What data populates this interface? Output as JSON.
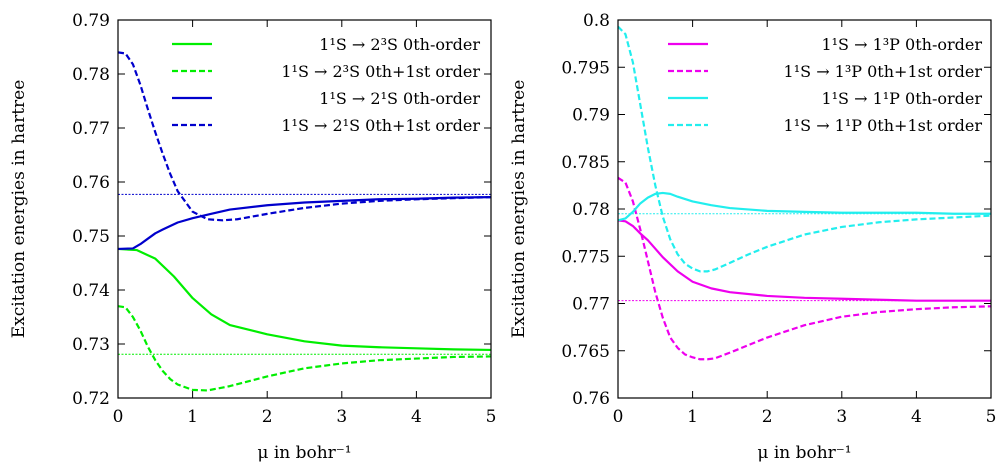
{
  "chart_data": [
    {
      "type": "line",
      "xlabel": "μ in bohr⁻¹",
      "ylabel": "Excitation energies in hartree",
      "xlim": [
        0,
        5
      ],
      "ylim": [
        0.72,
        0.79
      ],
      "xticks": [
        "0",
        "1",
        "2",
        "3",
        "4",
        "5"
      ],
      "yticks": [
        "0.72",
        "0.73",
        "0.74",
        "0.75",
        "0.76",
        "0.77",
        "0.78",
        "0.79"
      ],
      "legend_position": "top-right",
      "series": [
        {
          "name": "1¹S → 2³S 0th-order",
          "color": "#00ee00",
          "dash": "solid",
          "x": [
            0,
            0.25,
            0.5,
            0.75,
            1,
            1.25,
            1.5,
            2,
            2.5,
            3,
            3.5,
            4,
            4.5,
            5
          ],
          "y": [
            0.7476,
            0.7474,
            0.7458,
            0.7425,
            0.7385,
            0.7355,
            0.7335,
            0.7318,
            0.7305,
            0.7297,
            0.7294,
            0.7292,
            0.729,
            0.7289
          ]
        },
        {
          "name": "1¹S → 2³S 0th+1st order",
          "color": "#00ee00",
          "dash": "dashed",
          "x": [
            0,
            0.1,
            0.2,
            0.3,
            0.4,
            0.5,
            0.6,
            0.7,
            0.8,
            1,
            1.2,
            1.5,
            2,
            2.5,
            3,
            3.5,
            4,
            4.5,
            5
          ],
          "y": [
            0.737,
            0.7368,
            0.735,
            0.7325,
            0.7295,
            0.727,
            0.725,
            0.7235,
            0.7225,
            0.7215,
            0.7214,
            0.7222,
            0.724,
            0.7255,
            0.7264,
            0.727,
            0.7273,
            0.7276,
            0.7277
          ]
        },
        {
          "name": "1¹S → 2¹S 0th-order",
          "color": "#0000cc",
          "dash": "solid",
          "x": [
            0,
            0.2,
            0.3,
            0.4,
            0.5,
            0.6,
            0.8,
            1,
            1.25,
            1.5,
            2,
            2.5,
            3,
            3.5,
            4,
            4.5,
            5
          ],
          "y": [
            0.7476,
            0.7477,
            0.7485,
            0.7495,
            0.7505,
            0.7512,
            0.7525,
            0.7533,
            0.7541,
            0.7549,
            0.7557,
            0.7562,
            0.7565,
            0.7568,
            0.7569,
            0.7571,
            0.7572
          ]
        },
        {
          "name": "1¹S → 2¹S 0th+1st order",
          "color": "#0000cc",
          "dash": "dashed",
          "x": [
            0,
            0.1,
            0.2,
            0.3,
            0.4,
            0.5,
            0.6,
            0.7,
            0.8,
            1,
            1.2,
            1.4,
            1.6,
            2,
            2.5,
            3,
            3.5,
            4,
            4.5,
            5
          ],
          "y": [
            0.784,
            0.7838,
            0.7818,
            0.778,
            0.7735,
            0.7692,
            0.7652,
            0.7615,
            0.7583,
            0.7545,
            0.7531,
            0.7529,
            0.7531,
            0.7541,
            0.7552,
            0.756,
            0.7565,
            0.7568,
            0.757,
            0.7572
          ]
        }
      ],
      "reference_lines": [
        {
          "y": 0.7577,
          "color": "#0000cc"
        },
        {
          "y": 0.7281,
          "color": "#00ee00"
        }
      ]
    },
    {
      "type": "line",
      "xlabel": "μ in bohr⁻¹",
      "ylabel": "Excitation energies in hartree",
      "xlim": [
        0,
        5
      ],
      "ylim": [
        0.76,
        0.8
      ],
      "xticks": [
        "0",
        "1",
        "2",
        "3",
        "4",
        "5"
      ],
      "yticks": [
        "0.76",
        "0.765",
        "0.77",
        "0.775",
        "0.78",
        "0.785",
        "0.79",
        "0.795",
        "0.8"
      ],
      "legend_position": "top-right",
      "series": [
        {
          "name": "1¹S → 1³P 0th-order",
          "color": "#ee00ee",
          "dash": "solid",
          "x": [
            0,
            0.1,
            0.2,
            0.3,
            0.4,
            0.5,
            0.6,
            0.8,
            1,
            1.25,
            1.5,
            2,
            2.5,
            3,
            3.5,
            4,
            4.5,
            5
          ],
          "y": [
            0.7788,
            0.7787,
            0.7782,
            0.7774,
            0.7767,
            0.7758,
            0.7749,
            0.7734,
            0.7723,
            0.7716,
            0.7712,
            0.7708,
            0.7706,
            0.7705,
            0.7704,
            0.7703,
            0.7703,
            0.7703
          ]
        },
        {
          "name": "1¹S → 1³P 0th+1st order",
          "color": "#ee00ee",
          "dash": "dashed",
          "x": [
            0,
            0.1,
            0.2,
            0.3,
            0.4,
            0.5,
            0.6,
            0.7,
            0.8,
            0.9,
            1,
            1.1,
            1.2,
            1.3,
            1.5,
            1.75,
            2,
            2.5,
            3,
            3.5,
            4,
            4.5,
            5
          ],
          "y": [
            0.7833,
            0.7828,
            0.7808,
            0.7778,
            0.7745,
            0.7712,
            0.7685,
            0.7664,
            0.7653,
            0.7646,
            0.7643,
            0.7641,
            0.7641,
            0.7642,
            0.7648,
            0.7656,
            0.7664,
            0.7677,
            0.7686,
            0.7691,
            0.7694,
            0.7696,
            0.7697
          ]
        },
        {
          "name": "1¹S → 1¹P 0th-order",
          "color": "#22eeee",
          "dash": "solid",
          "x": [
            0,
            0.1,
            0.2,
            0.3,
            0.4,
            0.5,
            0.6,
            0.7,
            0.8,
            1,
            1.25,
            1.5,
            2,
            2.5,
            3,
            3.5,
            4,
            4.5,
            5
          ],
          "y": [
            0.7788,
            0.779,
            0.7797,
            0.7806,
            0.7812,
            0.7816,
            0.7817,
            0.7816,
            0.7813,
            0.7808,
            0.7804,
            0.7801,
            0.7798,
            0.7797,
            0.7796,
            0.7796,
            0.7796,
            0.7795,
            0.7795
          ]
        },
        {
          "name": "1¹S → 1¹P 0th+1st order",
          "color": "#22eeee",
          "dash": "dashed",
          "x": [
            0,
            0.1,
            0.2,
            0.3,
            0.4,
            0.5,
            0.6,
            0.7,
            0.8,
            0.9,
            1,
            1.1,
            1.2,
            1.3,
            1.5,
            1.75,
            2,
            2.5,
            3,
            3.5,
            4,
            4.5,
            5
          ],
          "y": [
            0.7993,
            0.7985,
            0.7955,
            0.791,
            0.7865,
            0.7825,
            0.7792,
            0.7768,
            0.7752,
            0.7742,
            0.7737,
            0.7734,
            0.7734,
            0.7736,
            0.7743,
            0.7752,
            0.776,
            0.7773,
            0.7781,
            0.7786,
            0.7789,
            0.7791,
            0.7793
          ]
        }
      ],
      "reference_lines": [
        {
          "y": 0.7795,
          "color": "#22eeee"
        },
        {
          "y": 0.7703,
          "color": "#ee00ee"
        }
      ]
    }
  ]
}
